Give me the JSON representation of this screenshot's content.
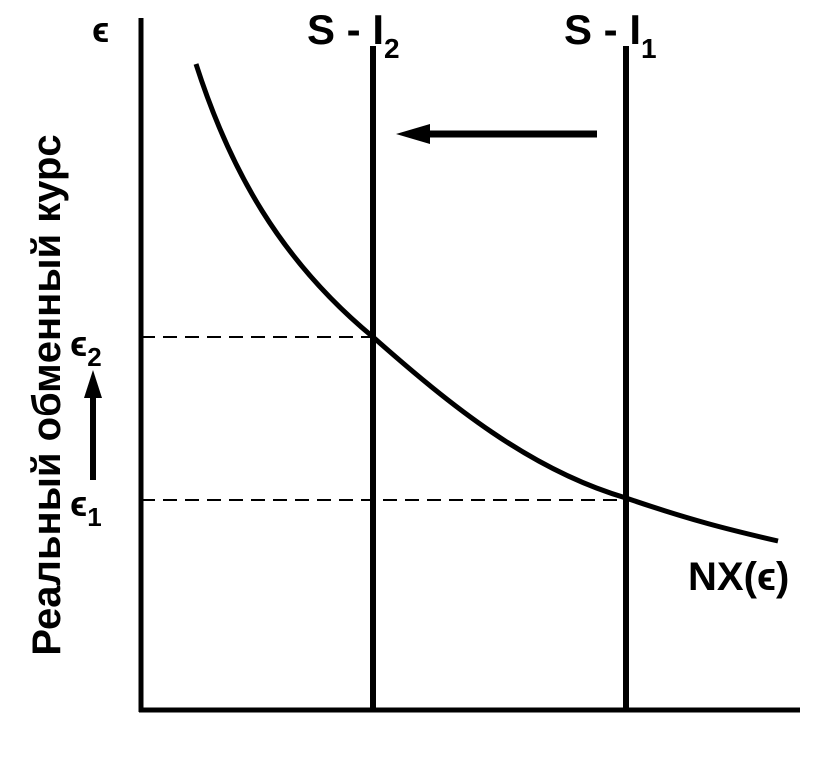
{
  "diagram": {
    "y_axis_symbol": "ϵ",
    "y_axis_label": "Реальный обменный курс",
    "line_before": {
      "prefix": "S - I",
      "subscript": "1"
    },
    "line_after": {
      "prefix": "S - I",
      "subscript": "2"
    },
    "curve_label": "NX(ϵ)",
    "level_low": {
      "symbol": "ϵ",
      "subscript": "1"
    },
    "level_high": {
      "symbol": "ϵ",
      "subscript": "2"
    }
  },
  "colors": {
    "ink": "#000000",
    "background": "#ffffff"
  }
}
